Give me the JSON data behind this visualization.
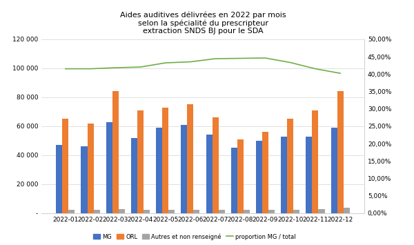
{
  "title": "Aides auditives délivrées en 2022 par mois\nselon la spécialité du prescripteur\nextraction SNDS BJ pour le SDA",
  "months": [
    "2022-01",
    "2022-02",
    "2022-03",
    "2022-04",
    "2022-05",
    "2022-06",
    "2022-07",
    "2022-08",
    "2022-09",
    "2022-10",
    "2022-11",
    "2022-12"
  ],
  "MG": [
    47000,
    46000,
    63000,
    52000,
    59000,
    61000,
    54000,
    45000,
    50000,
    53000,
    53000,
    59000
  ],
  "ORL": [
    65000,
    62000,
    84000,
    71000,
    73000,
    75000,
    66000,
    51000,
    56000,
    65000,
    71000,
    84000
  ],
  "Autres": [
    2500,
    2500,
    2800,
    2500,
    2500,
    2500,
    2500,
    2500,
    2500,
    2500,
    2800,
    3500
  ],
  "proportion": [
    0.415,
    0.415,
    0.418,
    0.42,
    0.432,
    0.435,
    0.444,
    0.445,
    0.446,
    0.433,
    0.415,
    0.402
  ],
  "color_MG": "#4472C4",
  "color_ORL": "#ED7D31",
  "color_Autres": "#A5A5A5",
  "color_proportion": "#70AD47",
  "ylim_left": [
    0,
    120000
  ],
  "ylim_right": [
    0,
    0.5
  ],
  "yticks_left": [
    0,
    20000,
    40000,
    60000,
    80000,
    100000,
    120000
  ],
  "yticks_right": [
    0.0,
    0.05,
    0.1,
    0.15,
    0.2,
    0.25,
    0.3,
    0.35,
    0.4,
    0.45,
    0.5
  ],
  "legend_labels": [
    "MG",
    "ORL",
    "Autres et non renseigné",
    "proportion MG / total"
  ],
  "bar_width": 0.25,
  "figsize": [
    6.0,
    3.55
  ],
  "dpi": 100
}
